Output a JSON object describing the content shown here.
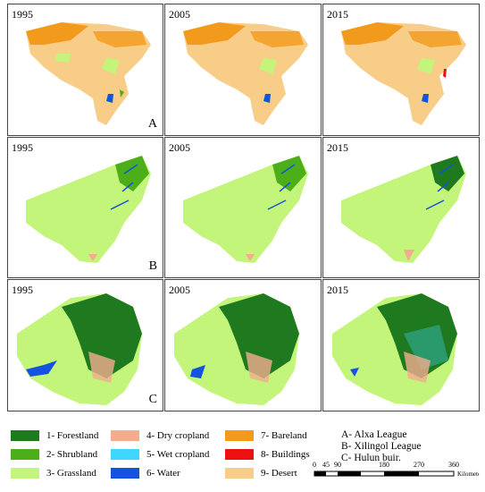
{
  "years": [
    "1995",
    "2005",
    "2015"
  ],
  "rows": [
    {
      "letter": "A"
    },
    {
      "letter": "B"
    },
    {
      "letter": "C"
    }
  ],
  "legend": {
    "items": [
      {
        "label": "1- Forestland",
        "color": "#1f7a1f"
      },
      {
        "label": "2- Shrubland",
        "color": "#4caf1a"
      },
      {
        "label": "3- Grassland",
        "color": "#c3f57a"
      },
      {
        "label": "4- Dry cropland",
        "color": "#f2ad8f"
      },
      {
        "label": "5- Wet cropland",
        "color": "#3fd6ff"
      },
      {
        "label": "6- Water",
        "color": "#1452e0"
      },
      {
        "label": "7- Bareland",
        "color": "#f19a1c"
      },
      {
        "label": "8- Buildings",
        "color": "#ee1111"
      },
      {
        "label": "9- Desert",
        "color": "#f7cd88"
      }
    ],
    "abbr": [
      "A- Alxa League",
      "B- Xilingol League",
      "C- Hulun buir."
    ]
  },
  "scale": {
    "ticks": [
      "0",
      "45",
      "90",
      "180",
      "270",
      "360"
    ],
    "unit": "Kilometers"
  }
}
